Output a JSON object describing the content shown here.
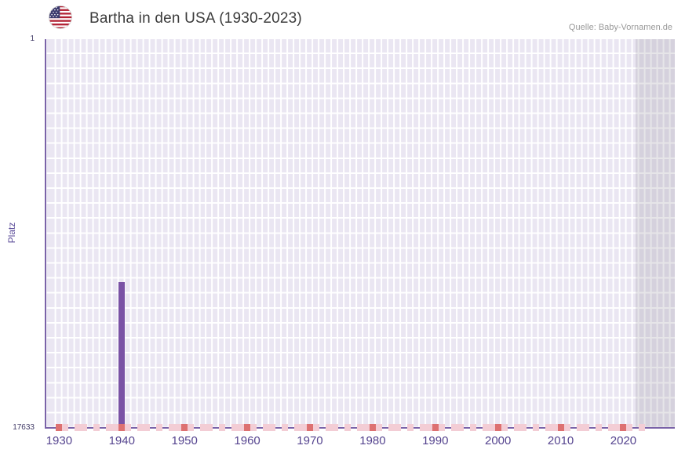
{
  "header": {
    "title": "Bartha in den USA (1930-2023)",
    "source": "Quelle: Baby-Vornamen.de"
  },
  "chart_data": {
    "type": "bar",
    "title": "Bartha in den USA (1930-2023)",
    "source": "Quelle: Baby-Vornamen.de",
    "xlabel": "",
    "ylabel": "Platz",
    "y_axis": {
      "label_top": "1",
      "label_bottom": "17633",
      "min": 1,
      "max": 17633,
      "inverted": true
    },
    "x_range": [
      1927.7,
      2028.2
    ],
    "x_ticks": [
      1930,
      1940,
      1950,
      1960,
      1970,
      1980,
      1990,
      2000,
      2010,
      2020
    ],
    "bars": [
      {
        "year": 1940,
        "rank": 11000
      }
    ],
    "baseline_rank_approx": 17500,
    "baseline_marks": {
      "major_years": [
        1930,
        1940,
        1950,
        1960,
        1970,
        1980,
        1990,
        2000,
        2010,
        2020
      ],
      "minor_years": [
        1931,
        1933,
        1934,
        1936,
        1938,
        1939,
        1941,
        1943,
        1944,
        1946,
        1948,
        1949,
        1951,
        1953,
        1954,
        1956,
        1958,
        1959,
        1961,
        1963,
        1964,
        1966,
        1968,
        1969,
        1971,
        1973,
        1974,
        1976,
        1978,
        1979,
        1981,
        1983,
        1984,
        1986,
        1988,
        1989,
        1991,
        1993,
        1994,
        1996,
        1998,
        1999,
        2001,
        2003,
        2004,
        2006,
        2008,
        2009,
        2011,
        2013,
        2014,
        2016,
        2018,
        2019,
        2021,
        2023
      ]
    },
    "shaded_region": {
      "from_year": 2022
    },
    "legend": null,
    "grid": true,
    "colors": {
      "bar": "#7a52a5",
      "mark_major": "#dd7171",
      "mark_minor": "#f3cdd5",
      "plot_bg": "#eae6f2",
      "axis": "#7a62a8",
      "tick_label": "#55448f"
    }
  }
}
